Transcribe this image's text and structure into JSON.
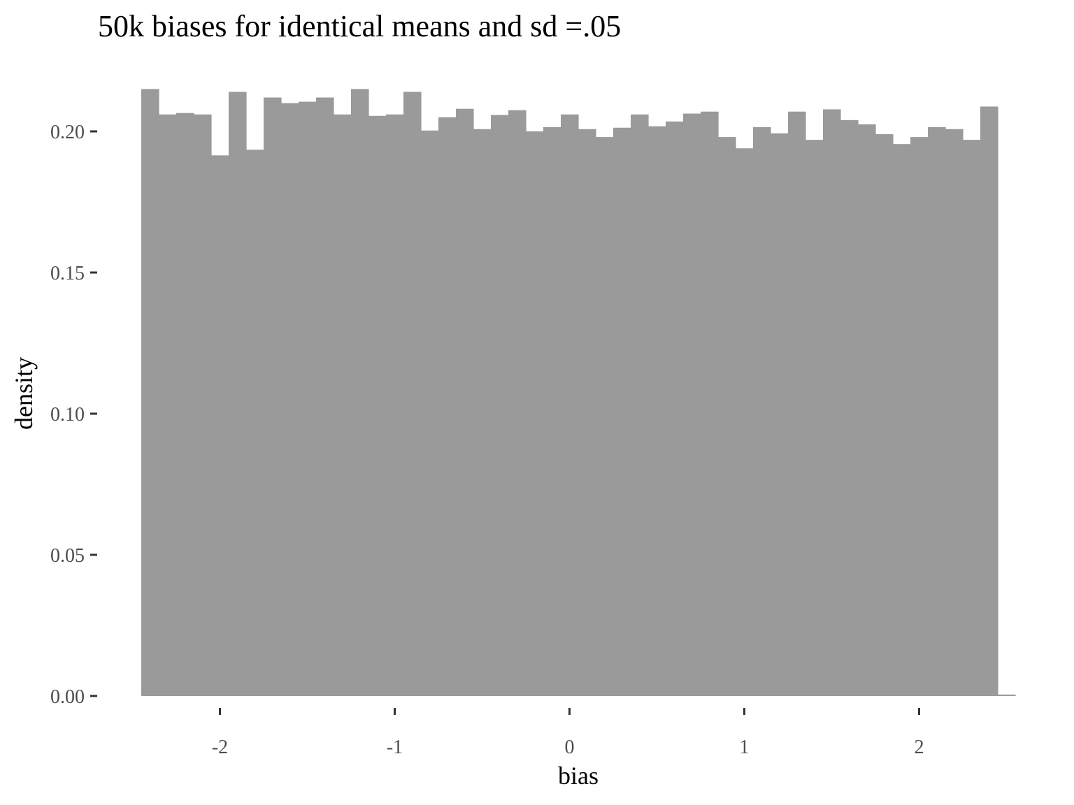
{
  "chart_data": {
    "type": "bar",
    "title": "50k biases for identical means and sd =.05",
    "xlabel": "bias",
    "ylabel": "density",
    "xlim": [
      -2.45,
      2.55
    ],
    "ylim": [
      0,
      0.215
    ],
    "x_ticks": [
      -2,
      -1,
      0,
      1,
      2
    ],
    "x_tick_labels": [
      "-2",
      "-1",
      "0",
      "1",
      "2"
    ],
    "y_ticks": [
      0,
      0.05,
      0.1,
      0.15,
      0.2
    ],
    "y_tick_labels": [
      "0.00",
      "0.05",
      "0.10",
      "0.15",
      "0.20"
    ],
    "bin_width": 0.1,
    "bin_start": -2.45,
    "bar_color": "#9a9a9a",
    "grid": false,
    "values": [
      0.215,
      0.206,
      0.2065,
      0.206,
      0.1915,
      0.214,
      0.1935,
      0.212,
      0.21,
      0.2105,
      0.212,
      0.206,
      0.215,
      0.2055,
      0.206,
      0.214,
      0.2003,
      0.205,
      0.208,
      0.2008,
      0.2058,
      0.2075,
      0.2,
      0.2015,
      0.206,
      0.2008,
      0.198,
      0.2013,
      0.206,
      0.2018,
      0.2035,
      0.2063,
      0.207,
      0.198,
      0.194,
      0.2015,
      0.1993,
      0.207,
      0.197,
      0.2078,
      0.204,
      0.2025,
      0.199,
      0.1955,
      0.198,
      0.2015,
      0.2008,
      0.197,
      0.2088,
      0.0005
    ]
  }
}
